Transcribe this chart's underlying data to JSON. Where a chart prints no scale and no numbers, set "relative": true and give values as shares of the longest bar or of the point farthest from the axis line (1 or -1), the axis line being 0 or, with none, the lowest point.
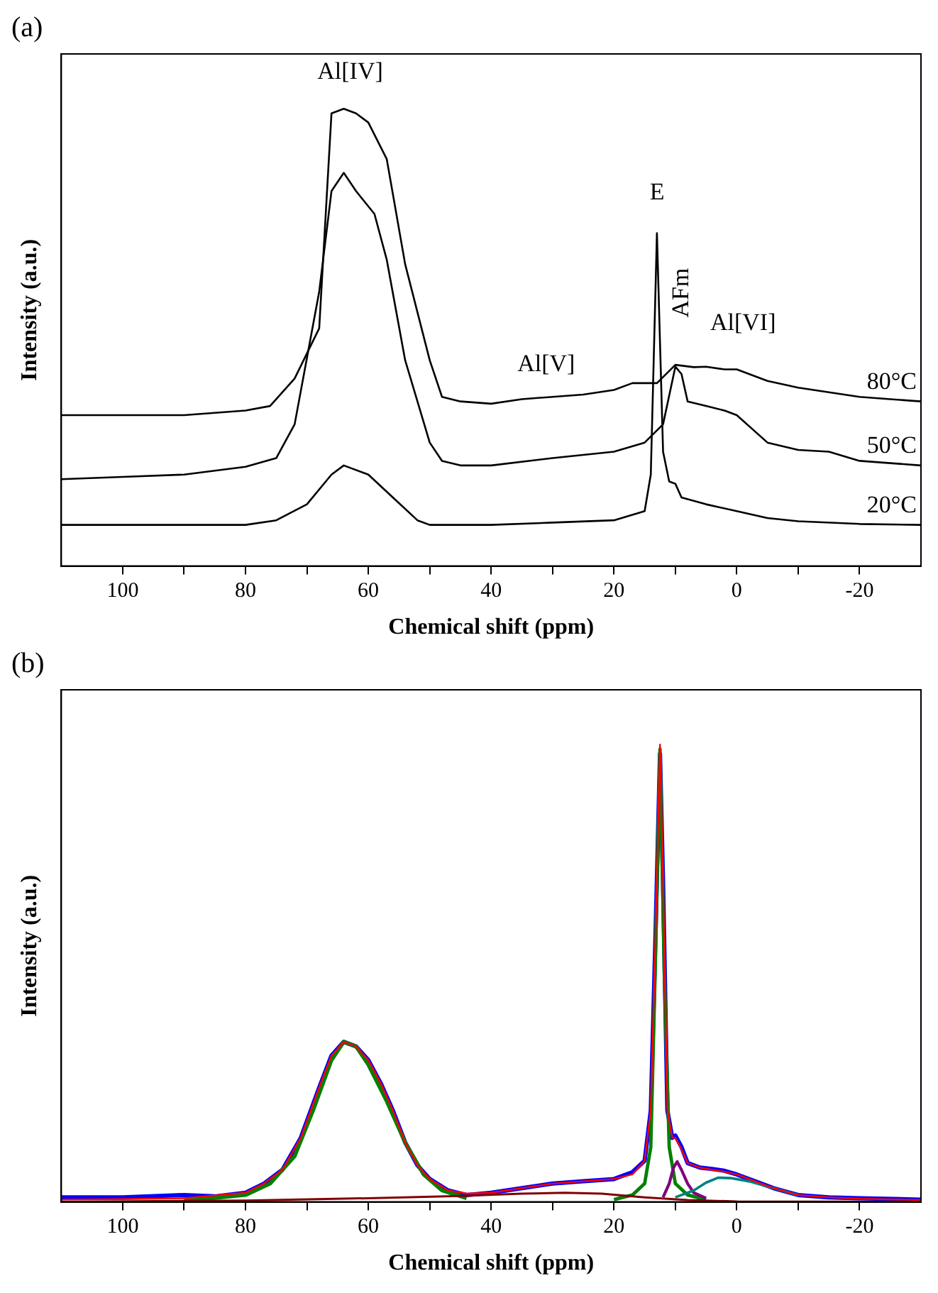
{
  "chart_data": [
    {
      "type": "line",
      "title": "(a)",
      "xlabel": "Chemical shift (ppm)",
      "ylabel": "Intensity (a.u.)",
      "relative": true,
      "xlim": [
        110,
        -30
      ],
      "xticks": [
        100,
        {
          "value": 90,
          "label": null
        },
        80,
        {
          "value": 70,
          "label": null
        },
        60,
        {
          "value": 50,
          "label": null
        },
        40,
        {
          "value": 30,
          "label": null
        },
        20,
        {
          "value": 10,
          "label": null
        },
        0,
        {
          "value": -10,
          "label": null
        },
        -20
      ],
      "grid": false,
      "legend": false,
      "line_style": "solid",
      "annotations": [
        "Al[IV]",
        "E",
        "AFm",
        "Al[VI]",
        "Al[V]"
      ],
      "series": [
        {
          "name": "80°C",
          "color": "#000000",
          "x": [
            110,
            100,
            90,
            80,
            76,
            72,
            68,
            66,
            64,
            62,
            60,
            57,
            54,
            50,
            48,
            45,
            40,
            35,
            30,
            25,
            20,
            17,
            15,
            13,
            10,
            7,
            5,
            2,
            0,
            -3,
            -5,
            -10,
            -15,
            -20,
            -25,
            -30
          ],
          "values": [
            0.33,
            0.33,
            0.33,
            0.34,
            0.35,
            0.41,
            0.52,
            0.99,
            1.0,
            0.99,
            0.97,
            0.89,
            0.66,
            0.45,
            0.37,
            0.36,
            0.355,
            0.365,
            0.37,
            0.375,
            0.385,
            0.4,
            0.4,
            0.4,
            0.44,
            0.435,
            0.436,
            0.43,
            0.43,
            0.415,
            0.405,
            0.39,
            0.38,
            0.37,
            0.365,
            0.36
          ]
        },
        {
          "name": "50°C",
          "color": "#000000",
          "x": [
            110,
            100,
            90,
            80,
            75,
            72,
            68,
            66,
            64,
            62,
            59,
            57,
            54,
            50,
            48,
            45,
            40,
            30,
            20,
            15,
            12,
            10,
            9,
            8,
            5,
            2,
            0,
            -5,
            -10,
            -15,
            -20,
            -25,
            -30
          ],
          "values": [
            0.19,
            0.195,
            0.2,
            0.217,
            0.236,
            0.31,
            0.6,
            0.82,
            0.86,
            0.82,
            0.77,
            0.67,
            0.45,
            0.27,
            0.23,
            0.22,
            0.22,
            0.236,
            0.25,
            0.27,
            0.31,
            0.436,
            0.42,
            0.36,
            0.35,
            0.34,
            0.33,
            0.27,
            0.254,
            0.25,
            0.23,
            0.225,
            0.22
          ]
        },
        {
          "name": "20°C",
          "color": "#000000",
          "x": [
            110,
            100,
            90,
            80,
            75,
            70,
            66,
            64,
            60,
            56,
            52,
            50,
            40,
            30,
            20,
            15,
            14,
            13,
            12,
            11,
            10,
            9,
            5,
            0,
            -5,
            -10,
            -20,
            -30
          ],
          "values": [
            0.09,
            0.09,
            0.09,
            0.09,
            0.1,
            0.135,
            0.2,
            0.22,
            0.2,
            0.15,
            0.1,
            0.09,
            0.09,
            0.095,
            0.1,
            0.12,
            0.2,
            0.728,
            0.25,
            0.185,
            0.18,
            0.15,
            0.135,
            0.12,
            0.105,
            0.098,
            0.092,
            0.09
          ]
        }
      ]
    },
    {
      "type": "line",
      "title": "(b)",
      "xlabel": "Chemical shift (ppm)",
      "ylabel": "Intensity (a.u.)",
      "relative": true,
      "xlim": [
        110,
        -30
      ],
      "xticks": [
        100,
        {
          "value": 90,
          "label": null
        },
        80,
        {
          "value": 70,
          "label": null
        },
        60,
        {
          "value": 50,
          "label": null
        },
        40,
        {
          "value": 30,
          "label": null
        },
        20,
        {
          "value": 10,
          "label": null
        },
        0,
        {
          "value": -10,
          "label": null
        },
        -20
      ],
      "grid": false,
      "legend": false,
      "line_style": "solid",
      "series": [
        {
          "color": "#0000ff",
          "x": [
            110,
            100,
            90,
            85,
            80,
            77,
            74,
            71,
            68,
            66,
            64,
            62,
            60,
            58,
            56,
            54,
            52,
            50,
            47,
            44,
            40,
            35,
            30,
            25,
            20,
            17,
            15,
            14,
            13.2,
            12.5,
            12,
            11.3,
            10.5,
            10,
            9,
            8,
            6,
            4,
            2,
            0,
            -3,
            -6,
            -10,
            -15,
            -20,
            -30
          ],
          "values": [
            0.01,
            0.01,
            0.015,
            0.012,
            0.02,
            0.04,
            0.07,
            0.14,
            0.25,
            0.32,
            0.35,
            0.34,
            0.31,
            0.26,
            0.2,
            0.13,
            0.08,
            0.05,
            0.025,
            0.015,
            0.02,
            0.03,
            0.04,
            0.045,
            0.05,
            0.065,
            0.09,
            0.2,
            0.6,
            0.98,
            0.7,
            0.2,
            0.14,
            0.145,
            0.12,
            0.085,
            0.075,
            0.072,
            0.068,
            0.06,
            0.045,
            0.03,
            0.015,
            0.01,
            0.008,
            0.005
          ]
        },
        {
          "color": "#008000",
          "x": [
            90,
            80,
            76,
            72,
            69,
            66,
            64,
            62,
            60,
            57,
            54,
            51,
            48,
            44
          ],
          "values": [
            0.002,
            0.015,
            0.04,
            0.1,
            0.2,
            0.31,
            0.35,
            0.34,
            0.3,
            0.22,
            0.13,
            0.06,
            0.025,
            0.008
          ]
        },
        {
          "color": "#008000",
          "x": [
            20,
            17,
            15,
            14,
            13.3,
            12.5,
            11.8,
            11,
            10,
            8,
            5
          ],
          "values": [
            0.005,
            0.015,
            0.04,
            0.12,
            0.5,
            0.99,
            0.5,
            0.12,
            0.04,
            0.015,
            0.005
          ]
        },
        {
          "color": "#800080",
          "x": [
            12,
            11,
            10.3,
            9.7,
            9,
            8,
            7,
            5
          ],
          "values": [
            0.01,
            0.04,
            0.075,
            0.088,
            0.07,
            0.04,
            0.02,
            0.008
          ]
        },
        {
          "color": "#008080",
          "x": [
            10,
            7,
            5,
            3,
            1,
            -2,
            -6,
            -10
          ],
          "values": [
            0.01,
            0.025,
            0.042,
            0.053,
            0.052,
            0.045,
            0.03,
            0.015
          ]
        },
        {
          "color": "#800000",
          "x": [
            110,
            80,
            60,
            45,
            35,
            28,
            22,
            15,
            8,
            0,
            -30
          ],
          "values": [
            0,
            0.003,
            0.008,
            0.013,
            0.018,
            0.02,
            0.018,
            0.01,
            0.004,
            0.001,
            0
          ]
        },
        {
          "color": "#ff0000",
          "x": [
            110,
            100,
            90,
            80,
            77,
            74,
            71,
            68,
            66,
            64,
            62,
            60,
            58,
            56,
            54,
            52,
            50,
            47,
            44,
            40,
            35,
            30,
            25,
            20,
            17,
            15,
            14,
            13.2,
            12.5,
            12,
            11.3,
            10.5,
            10,
            9,
            8,
            6,
            4,
            2,
            0,
            -3,
            -6,
            -10,
            -15,
            -20,
            -30
          ],
          "values": [
            0.005,
            0.006,
            0.008,
            0.02,
            0.04,
            0.07,
            0.14,
            0.25,
            0.32,
            0.35,
            0.34,
            0.31,
            0.26,
            0.2,
            0.13,
            0.08,
            0.05,
            0.025,
            0.018,
            0.02,
            0.03,
            0.04,
            0.045,
            0.05,
            0.06,
            0.09,
            0.2,
            0.6,
            1.0,
            0.7,
            0.2,
            0.14,
            0.14,
            0.115,
            0.085,
            0.075,
            0.07,
            0.066,
            0.06,
            0.045,
            0.03,
            0.015,
            0.01,
            0.007,
            0.004
          ]
        }
      ]
    }
  ]
}
